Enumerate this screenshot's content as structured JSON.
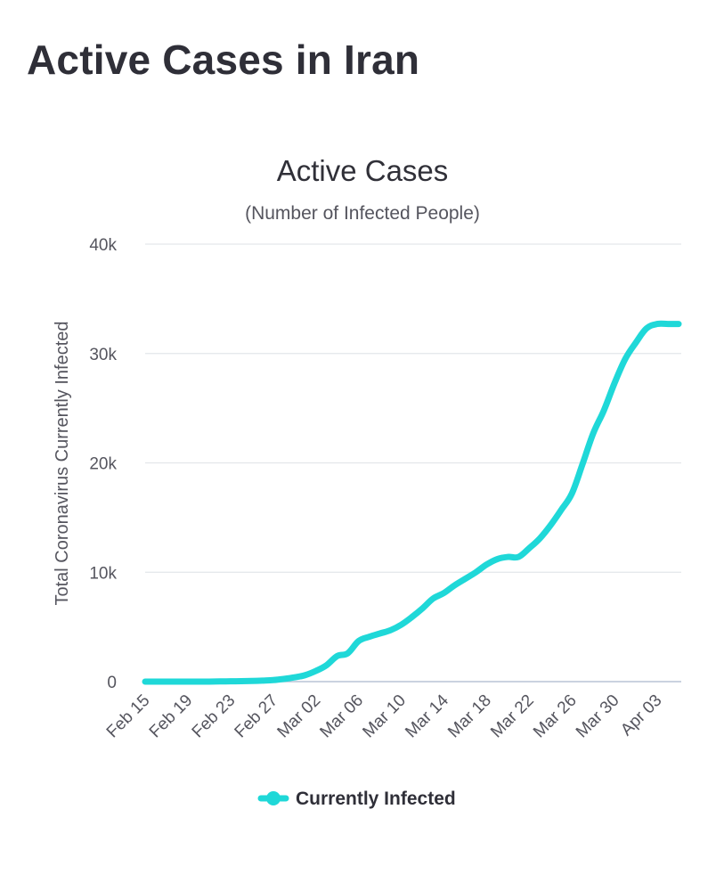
{
  "page": {
    "heading": "Active Cases in Iran"
  },
  "chart_data": {
    "type": "line",
    "title": "Active Cases",
    "subtitle": "(Number of Infected People)",
    "xlabel": "",
    "ylabel": "Total Coronavirus Currently Infected",
    "ylim": [
      0,
      40000
    ],
    "yticks": [
      0,
      10000,
      20000,
      30000,
      40000
    ],
    "ytick_labels": [
      "0",
      "10k",
      "20k",
      "30k",
      "40k"
    ],
    "xtick_labels": [
      "Feb 15",
      "Feb 19",
      "Feb 23",
      "Feb 27",
      "Mar 02",
      "Mar 06",
      "Mar 10",
      "Mar 14",
      "Mar 18",
      "Mar 22",
      "Mar 26",
      "Mar 30",
      "Apr 03"
    ],
    "grid": true,
    "legend_position": "bottom",
    "series": [
      {
        "name": "Currently Infected",
        "color": "#1fd8d8",
        "x": [
          "Feb 15",
          "Feb 16",
          "Feb 17",
          "Feb 18",
          "Feb 19",
          "Feb 20",
          "Feb 21",
          "Feb 22",
          "Feb 23",
          "Feb 24",
          "Feb 25",
          "Feb 26",
          "Feb 27",
          "Feb 28",
          "Feb 29",
          "Mar 01",
          "Mar 02",
          "Mar 03",
          "Mar 04",
          "Mar 05",
          "Mar 06",
          "Mar 07",
          "Mar 08",
          "Mar 09",
          "Mar 10",
          "Mar 11",
          "Mar 12",
          "Mar 13",
          "Mar 14",
          "Mar 15",
          "Mar 16",
          "Mar 17",
          "Mar 18",
          "Mar 19",
          "Mar 20",
          "Mar 21",
          "Mar 22",
          "Mar 23",
          "Mar 24",
          "Mar 25",
          "Mar 26",
          "Mar 27",
          "Mar 28",
          "Mar 29",
          "Mar 30",
          "Mar 31",
          "Apr 01",
          "Apr 02",
          "Apr 03",
          "Apr 04",
          "Apr 05"
        ],
        "values": [
          0,
          0,
          0,
          0,
          0,
          0,
          5,
          18,
          28,
          43,
          61,
          95,
          141,
          245,
          388,
          593,
          978,
          1500,
          2336,
          2600,
          3700,
          4100,
          4400,
          4700,
          5200,
          5900,
          6700,
          7600,
          8100,
          8800,
          9400,
          10000,
          10700,
          11200,
          11400,
          11400,
          12200,
          13100,
          14300,
          15700,
          17200,
          19900,
          22700,
          24800,
          27300,
          29500,
          31000,
          32300,
          32700,
          32700,
          32700
        ]
      }
    ]
  }
}
